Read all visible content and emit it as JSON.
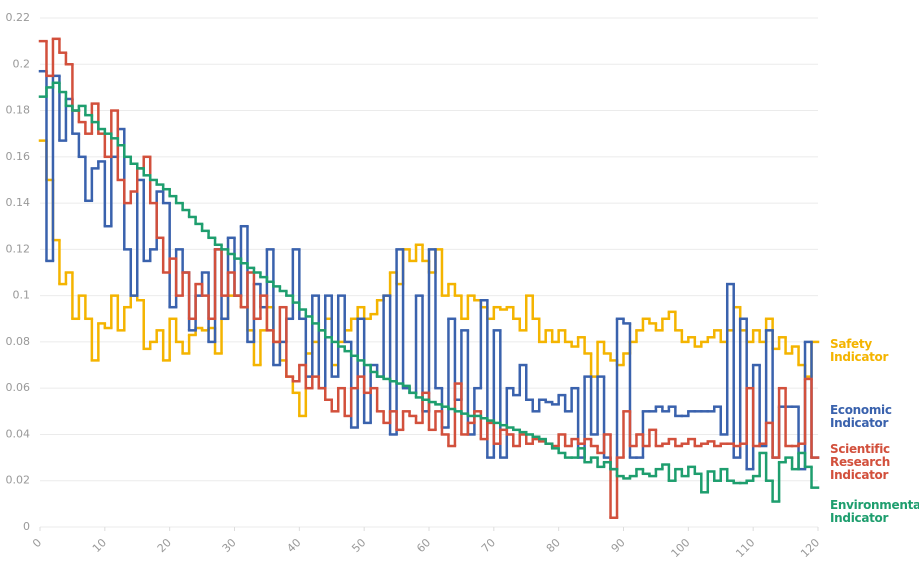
{
  "chart_data": {
    "type": "line",
    "step": true,
    "x": [
      0,
      1,
      2,
      3,
      4,
      5,
      6,
      7,
      8,
      9,
      10,
      11,
      12,
      13,
      14,
      15,
      16,
      17,
      18,
      19,
      20,
      21,
      22,
      23,
      24,
      25,
      26,
      27,
      28,
      29,
      30,
      31,
      32,
      33,
      34,
      35,
      36,
      37,
      38,
      39,
      40,
      41,
      42,
      43,
      44,
      45,
      46,
      47,
      48,
      49,
      50,
      51,
      52,
      53,
      54,
      55,
      56,
      57,
      58,
      59,
      60,
      61,
      62,
      63,
      64,
      65,
      66,
      67,
      68,
      69,
      70,
      71,
      72,
      73,
      74,
      75,
      76,
      77,
      78,
      79,
      80,
      81,
      82,
      83,
      84,
      85,
      86,
      87,
      88,
      89,
      90,
      91,
      92,
      93,
      94,
      95,
      96,
      97,
      98,
      99,
      100,
      101,
      102,
      103,
      104,
      105,
      106,
      107,
      108,
      109,
      110,
      111,
      112,
      113,
      114,
      115,
      116,
      117,
      118,
      119
    ],
    "xlim": [
      0,
      120
    ],
    "xticks": [
      0,
      10,
      20,
      30,
      40,
      50,
      60,
      70,
      80,
      90,
      100,
      110,
      120
    ],
    "ylim": [
      0,
      0.22
    ],
    "yticks": [
      0,
      0.02,
      0.04,
      0.06,
      0.08,
      0.1,
      0.12,
      0.14,
      0.16,
      0.18,
      0.2,
      0.22
    ],
    "grid": true,
    "series": [
      {
        "name": "Safety Indicator",
        "color": "#f4b400",
        "values": [
          0.167,
          0.15,
          0.124,
          0.105,
          0.11,
          0.09,
          0.1,
          0.09,
          0.072,
          0.088,
          0.086,
          0.1,
          0.085,
          0.095,
          0.1,
          0.098,
          0.077,
          0.08,
          0.085,
          0.072,
          0.09,
          0.08,
          0.075,
          0.083,
          0.086,
          0.085,
          0.086,
          0.075,
          0.09,
          0.1,
          0.1,
          0.095,
          0.085,
          0.07,
          0.085,
          0.095,
          0.08,
          0.072,
          0.065,
          0.058,
          0.048,
          0.075,
          0.08,
          0.085,
          0.09,
          0.07,
          0.08,
          0.085,
          0.09,
          0.095,
          0.09,
          0.092,
          0.098,
          0.1,
          0.11,
          0.105,
          0.12,
          0.115,
          0.122,
          0.115,
          0.11,
          0.12,
          0.1,
          0.105,
          0.1,
          0.09,
          0.1,
          0.098,
          0.095,
          0.09,
          0.095,
          0.094,
          0.095,
          0.09,
          0.085,
          0.1,
          0.09,
          0.08,
          0.085,
          0.08,
          0.085,
          0.08,
          0.078,
          0.082,
          0.075,
          0.065,
          0.08,
          0.075,
          0.072,
          0.07,
          0.075,
          0.08,
          0.085,
          0.09,
          0.088,
          0.085,
          0.09,
          0.093,
          0.085,
          0.08,
          0.082,
          0.078,
          0.08,
          0.082,
          0.085,
          0.08,
          0.085,
          0.095,
          0.085,
          0.08,
          0.085,
          0.08,
          0.09,
          0.077,
          0.082,
          0.075,
          0.078,
          0.07,
          0.065,
          0.08
        ]
      },
      {
        "name": "Economic Indicator",
        "color": "#3a62ad",
        "values": [
          0.197,
          0.115,
          0.195,
          0.167,
          0.185,
          0.17,
          0.16,
          0.141,
          0.155,
          0.158,
          0.13,
          0.16,
          0.172,
          0.12,
          0.1,
          0.15,
          0.115,
          0.12,
          0.145,
          0.14,
          0.095,
          0.12,
          0.11,
          0.085,
          0.1,
          0.11,
          0.08,
          0.12,
          0.09,
          0.125,
          0.1,
          0.13,
          0.08,
          0.105,
          0.095,
          0.12,
          0.07,
          0.08,
          0.09,
          0.12,
          0.09,
          0.065,
          0.1,
          0.06,
          0.1,
          0.065,
          0.1,
          0.08,
          0.043,
          0.09,
          0.045,
          0.07,
          0.065,
          0.1,
          0.04,
          0.12,
          0.06,
          0.058,
          0.1,
          0.05,
          0.12,
          0.06,
          0.043,
          0.09,
          0.055,
          0.085,
          0.04,
          0.06,
          0.098,
          0.03,
          0.085,
          0.03,
          0.06,
          0.057,
          0.07,
          0.055,
          0.05,
          0.055,
          0.054,
          0.053,
          0.057,
          0.05,
          0.06,
          0.03,
          0.065,
          0.04,
          0.065,
          0.03,
          0.025,
          0.09,
          0.088,
          0.03,
          0.03,
          0.05,
          0.05,
          0.052,
          0.05,
          0.052,
          0.048,
          0.048,
          0.05,
          0.05,
          0.05,
          0.05,
          0.052,
          0.04,
          0.105,
          0.03,
          0.09,
          0.025,
          0.07,
          0.035,
          0.085,
          0.03,
          0.052,
          0.052,
          0.052,
          0.025,
          0.08,
          0.03
        ]
      },
      {
        "name": "Scientific Research Indicator",
        "color": "#d2503c",
        "values": [
          0.21,
          0.195,
          0.211,
          0.205,
          0.2,
          0.18,
          0.175,
          0.17,
          0.183,
          0.17,
          0.16,
          0.18,
          0.15,
          0.14,
          0.145,
          0.155,
          0.16,
          0.14,
          0.125,
          0.11,
          0.116,
          0.1,
          0.11,
          0.09,
          0.105,
          0.1,
          0.09,
          0.12,
          0.1,
          0.11,
          0.1,
          0.095,
          0.11,
          0.09,
          0.1,
          0.085,
          0.08,
          0.095,
          0.065,
          0.063,
          0.07,
          0.06,
          0.065,
          0.06,
          0.055,
          0.05,
          0.06,
          0.048,
          0.06,
          0.065,
          0.058,
          0.06,
          0.05,
          0.045,
          0.05,
          0.042,
          0.05,
          0.048,
          0.045,
          0.058,
          0.042,
          0.05,
          0.04,
          0.035,
          0.062,
          0.04,
          0.045,
          0.05,
          0.038,
          0.045,
          0.036,
          0.042,
          0.04,
          0.035,
          0.04,
          0.036,
          0.038,
          0.037,
          0.036,
          0.035,
          0.04,
          0.035,
          0.038,
          0.036,
          0.038,
          0.035,
          0.032,
          0.04,
          0.004,
          0.03,
          0.05,
          0.035,
          0.04,
          0.035,
          0.042,
          0.035,
          0.036,
          0.038,
          0.035,
          0.036,
          0.038,
          0.035,
          0.036,
          0.037,
          0.035,
          0.036,
          0.036,
          0.035,
          0.036,
          0.06,
          0.035,
          0.036,
          0.045,
          0.03,
          0.06,
          0.035,
          0.035,
          0.036,
          0.064,
          0.03
        ]
      },
      {
        "name": "Environmental Indicator",
        "color": "#1e9e6e",
        "values": [
          0.186,
          0.19,
          0.192,
          0.188,
          0.182,
          0.18,
          0.182,
          0.178,
          0.175,
          0.172,
          0.17,
          0.168,
          0.165,
          0.16,
          0.157,
          0.155,
          0.152,
          0.15,
          0.148,
          0.146,
          0.143,
          0.14,
          0.137,
          0.134,
          0.131,
          0.128,
          0.125,
          0.122,
          0.12,
          0.118,
          0.116,
          0.114,
          0.112,
          0.11,
          0.108,
          0.106,
          0.104,
          0.102,
          0.1,
          0.097,
          0.094,
          0.091,
          0.088,
          0.085,
          0.082,
          0.08,
          0.078,
          0.076,
          0.074,
          0.072,
          0.07,
          0.067,
          0.065,
          0.064,
          0.063,
          0.062,
          0.061,
          0.058,
          0.056,
          0.055,
          0.054,
          0.053,
          0.052,
          0.051,
          0.05,
          0.049,
          0.048,
          0.048,
          0.047,
          0.046,
          0.045,
          0.044,
          0.043,
          0.042,
          0.041,
          0.04,
          0.039,
          0.038,
          0.036,
          0.034,
          0.032,
          0.03,
          0.03,
          0.034,
          0.028,
          0.03,
          0.026,
          0.028,
          0.025,
          0.022,
          0.021,
          0.022,
          0.025,
          0.023,
          0.022,
          0.025,
          0.027,
          0.02,
          0.025,
          0.022,
          0.026,
          0.023,
          0.015,
          0.024,
          0.02,
          0.025,
          0.02,
          0.019,
          0.019,
          0.02,
          0.022,
          0.032,
          0.02,
          0.011,
          0.028,
          0.03,
          0.025,
          0.032,
          0.026,
          0.017
        ]
      }
    ]
  }
}
